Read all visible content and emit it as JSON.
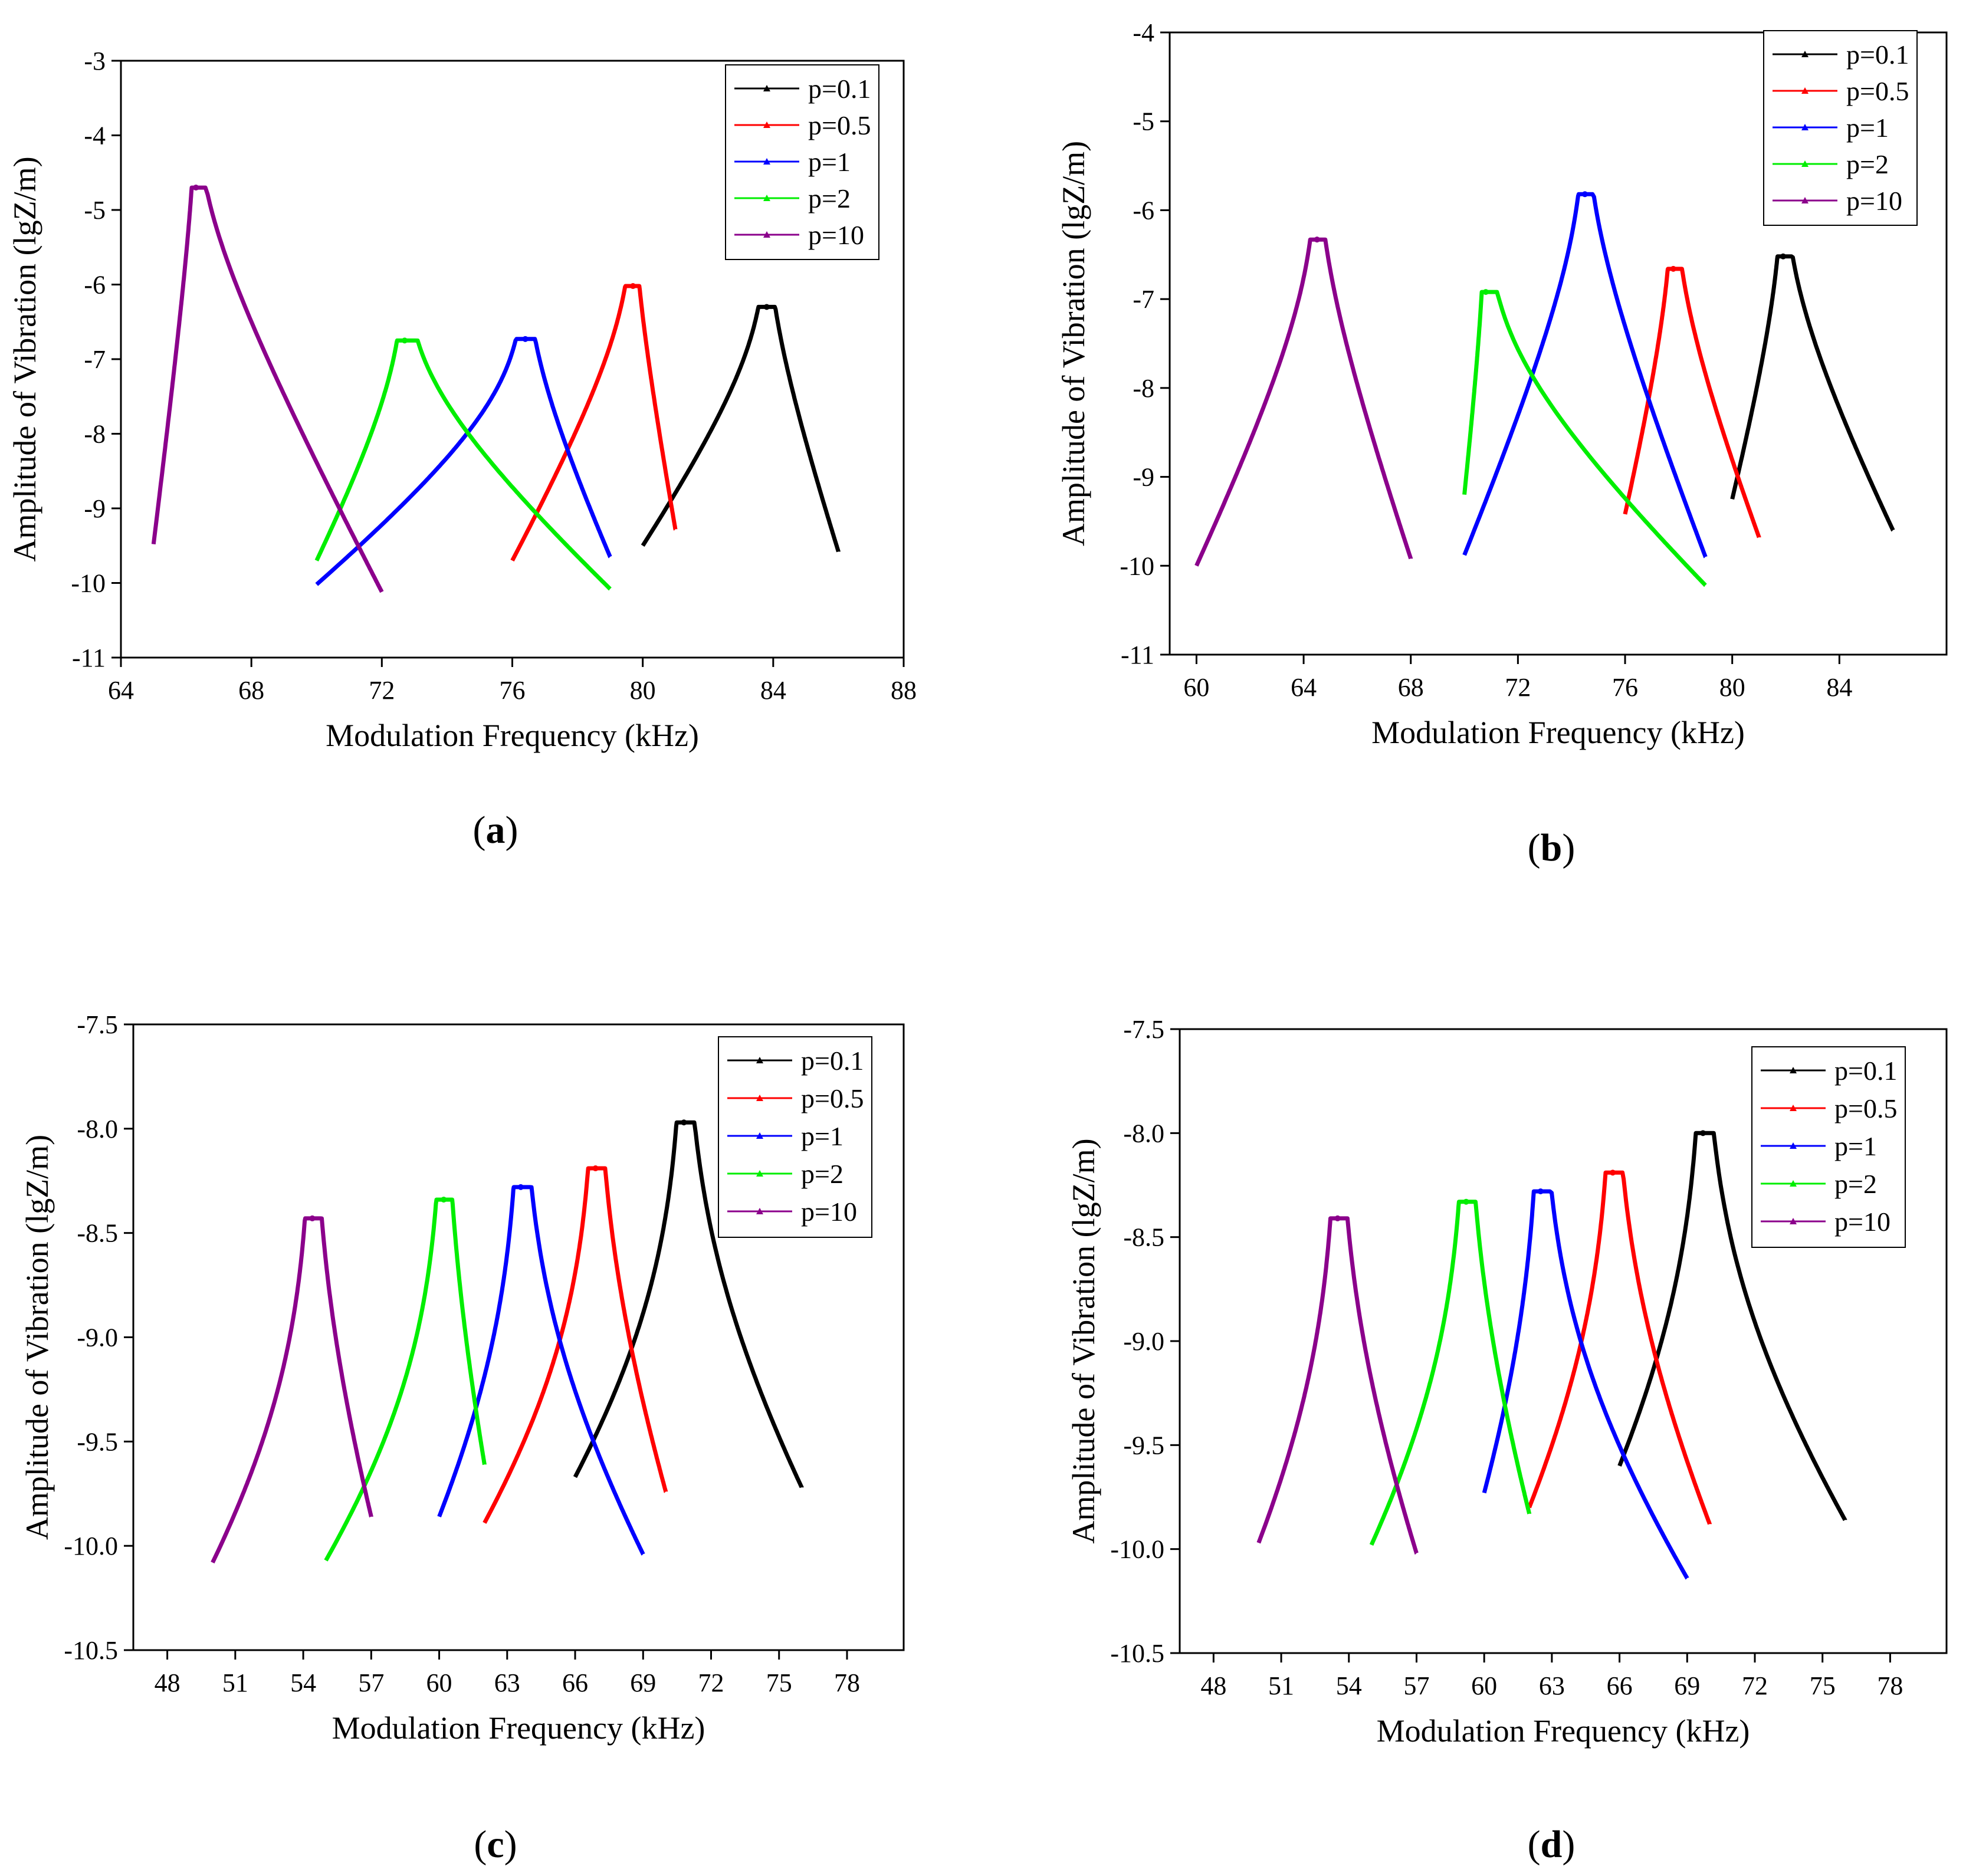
{
  "figure": {
    "series_colors": {
      "p=0.1": "#000000",
      "p=0.5": "#ff0000",
      "p=1": "#0000ff",
      "p=2": "#00ee00",
      "p=10": "#8b008b"
    }
  },
  "chart_data": [
    {
      "panel": "a",
      "caption_letter": "a",
      "type": "line",
      "xlabel": "Modulation Frequency (kHz)",
      "ylabel": "Amplitude of Vibration (lgZ/m)",
      "xlim": [
        64,
        88
      ],
      "ylim": [
        -11,
        -3
      ],
      "xticks": [
        64,
        68,
        72,
        76,
        80,
        84,
        88
      ],
      "yticks": [
        -11,
        -10,
        -9,
        -8,
        -7,
        -6,
        -5,
        -4,
        -3
      ],
      "ytick_decimals": 0,
      "legend_position": "top-right",
      "series": [
        {
          "name": "p=0.1",
          "color": "#000000",
          "x_start": 80,
          "x_end": 86,
          "y_start": -9.5,
          "y_end": -9.58,
          "peak_x": 83.8,
          "peak_y": -6.3
        },
        {
          "name": "p=0.5",
          "color": "#ff0000",
          "x_start": 76,
          "x_end": 81,
          "y_start": -9.7,
          "y_end": -9.28,
          "peak_x": 79.7,
          "peak_y": -6.02
        },
        {
          "name": "p=1",
          "color": "#0000ff",
          "x_start": 70,
          "x_end": 79,
          "y_start": -10.02,
          "y_end": -9.65,
          "peak_x": 76.4,
          "peak_y": -6.73
        },
        {
          "name": "p=2",
          "color": "#00ee00",
          "x_start": 70,
          "x_end": 79,
          "y_start": -9.7,
          "y_end": -10.08,
          "peak_x": 72.7,
          "peak_y": -6.75
        },
        {
          "name": "p=10",
          "color": "#8b008b",
          "x_start": 65,
          "x_end": 72,
          "y_start": -9.48,
          "y_end": -10.12,
          "peak_x": 66.3,
          "peak_y": -4.7
        }
      ]
    },
    {
      "panel": "b",
      "caption_letter": "b",
      "type": "line",
      "xlabel": "Modulation Frequency (kHz)",
      "ylabel": "Amplitude of Vibration (lgZ/m)",
      "xlim": [
        59,
        88
      ],
      "ylim": [
        -11,
        -4
      ],
      "xticks": [
        60,
        64,
        68,
        72,
        76,
        80,
        84
      ],
      "yticks": [
        -11,
        -10,
        -9,
        -8,
        -7,
        -6,
        -5,
        -4
      ],
      "ytick_decimals": 0,
      "legend_position": "top-right",
      "series": [
        {
          "name": "p=0.1",
          "color": "#000000",
          "x_start": 80,
          "x_end": 86,
          "y_start": -9.25,
          "y_end": -9.6,
          "peak_x": 81.9,
          "peak_y": -6.52
        },
        {
          "name": "p=0.5",
          "color": "#ff0000",
          "x_start": 76,
          "x_end": 81,
          "y_start": -9.42,
          "y_end": -9.68,
          "peak_x": 77.8,
          "peak_y": -6.66
        },
        {
          "name": "p=1",
          "color": "#0000ff",
          "x_start": 70,
          "x_end": 79,
          "y_start": -9.88,
          "y_end": -9.9,
          "peak_x": 74.5,
          "peak_y": -5.82
        },
        {
          "name": "p=2",
          "color": "#00ee00",
          "x_start": 70,
          "x_end": 79,
          "y_start": -9.2,
          "y_end": -10.22,
          "peak_x": 70.8,
          "peak_y": -6.92
        },
        {
          "name": "p=10",
          "color": "#8b008b",
          "x_start": 60,
          "x_end": 68,
          "y_start": -10.0,
          "y_end": -9.92,
          "peak_x": 64.5,
          "peak_y": -6.33
        }
      ]
    },
    {
      "panel": "c",
      "caption_letter": "c",
      "type": "line",
      "xlabel": "Modulation Frequency (kHz)",
      "ylabel": "Amplitude of Vibration (lgZ/m)",
      "xlim": [
        46.5,
        80.5
      ],
      "ylim": [
        -10.5,
        -7.5
      ],
      "xticks": [
        48,
        51,
        54,
        57,
        60,
        63,
        66,
        69,
        72,
        75,
        78
      ],
      "yticks": [
        -10.5,
        -10.0,
        -9.5,
        -9.0,
        -8.5,
        -8.0,
        -7.5
      ],
      "ytick_decimals": 1,
      "legend_position": "top-right",
      "series": [
        {
          "name": "p=0.1",
          "color": "#000000",
          "x_start": 66,
          "x_end": 76,
          "y_start": -9.67,
          "y_end": -9.72,
          "peak_x": 70.8,
          "peak_y": -7.97
        },
        {
          "name": "p=0.5",
          "color": "#ff0000",
          "x_start": 62,
          "x_end": 70,
          "y_start": -9.89,
          "y_end": -9.74,
          "peak_x": 66.9,
          "peak_y": -8.19
        },
        {
          "name": "p=1",
          "color": "#0000ff",
          "x_start": 60,
          "x_end": 69,
          "y_start": -9.86,
          "y_end": -10.04,
          "peak_x": 63.6,
          "peak_y": -8.28
        },
        {
          "name": "p=2",
          "color": "#00ee00",
          "x_start": 55,
          "x_end": 62,
          "y_start": -10.07,
          "y_end": -9.61,
          "peak_x": 60.2,
          "peak_y": -8.34
        },
        {
          "name": "p=10",
          "color": "#8b008b",
          "x_start": 50,
          "x_end": 57,
          "y_start": -10.08,
          "y_end": -9.86,
          "peak_x": 54.4,
          "peak_y": -8.43
        }
      ]
    },
    {
      "panel": "d",
      "caption_letter": "d",
      "type": "line",
      "xlabel": "Modulation Frequency (kHz)",
      "ylabel": "Amplitude of Vibration (lgZ/m)",
      "xlim": [
        46.5,
        80.5
      ],
      "ylim": [
        -10.5,
        -7.5
      ],
      "xticks": [
        48,
        51,
        54,
        57,
        60,
        63,
        66,
        69,
        72,
        75,
        78
      ],
      "yticks": [
        -10.5,
        -10.0,
        -9.5,
        -9.0,
        -8.5,
        -8.0,
        -7.5
      ],
      "ytick_decimals": 1,
      "legend_position": "top-right",
      "series": [
        {
          "name": "p=0.1",
          "color": "#000000",
          "x_start": 66,
          "x_end": 76,
          "y_start": -9.6,
          "y_end": -9.86,
          "peak_x": 69.7,
          "peak_y": -8.0
        },
        {
          "name": "p=0.5",
          "color": "#ff0000",
          "x_start": 62,
          "x_end": 70,
          "y_start": -9.8,
          "y_end": -9.88,
          "peak_x": 65.7,
          "peak_y": -8.19
        },
        {
          "name": "p=1",
          "color": "#0000ff",
          "x_start": 60,
          "x_end": 69,
          "y_start": -9.73,
          "y_end": -10.14,
          "peak_x": 62.5,
          "peak_y": -8.28
        },
        {
          "name": "p=2",
          "color": "#00ee00",
          "x_start": 55,
          "x_end": 62,
          "y_start": -9.98,
          "y_end": -9.83,
          "peak_x": 59.2,
          "peak_y": -8.33
        },
        {
          "name": "p=10",
          "color": "#8b008b",
          "x_start": 50,
          "x_end": 57,
          "y_start": -9.97,
          "y_end": -10.02,
          "peak_x": 53.5,
          "peak_y": -8.41
        }
      ]
    }
  ]
}
